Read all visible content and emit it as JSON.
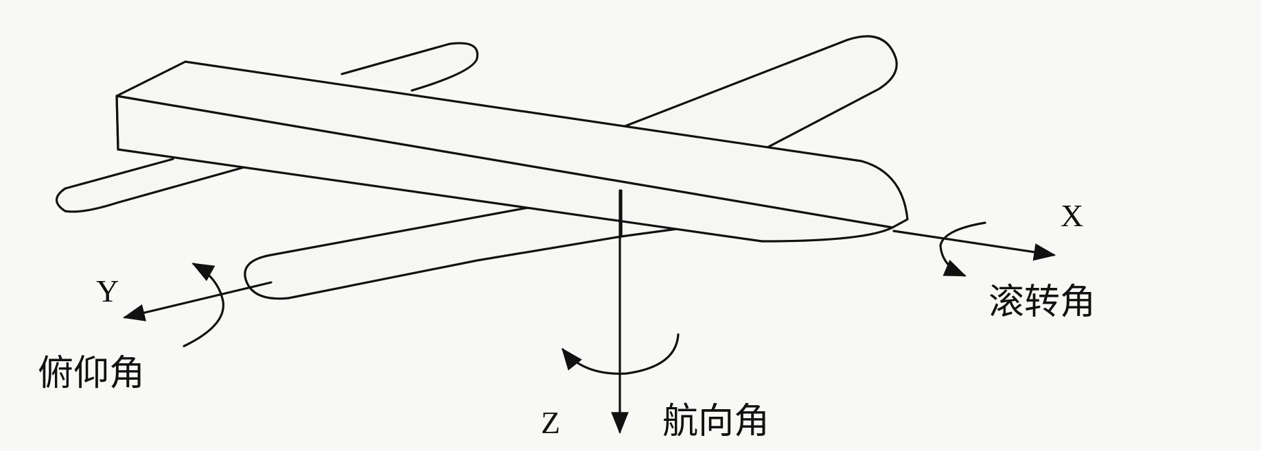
{
  "diagram": {
    "axes": {
      "x": {
        "letter": "X",
        "rotation_label": "滚转角"
      },
      "y": {
        "letter": "Y",
        "rotation_label": "俯仰角"
      },
      "z": {
        "letter": "Z",
        "rotation_label": "航向角"
      }
    },
    "colors": {
      "ink": "#111111",
      "paper": "#f8f9f7",
      "fuselage_fill": "#f6f7f5"
    }
  }
}
